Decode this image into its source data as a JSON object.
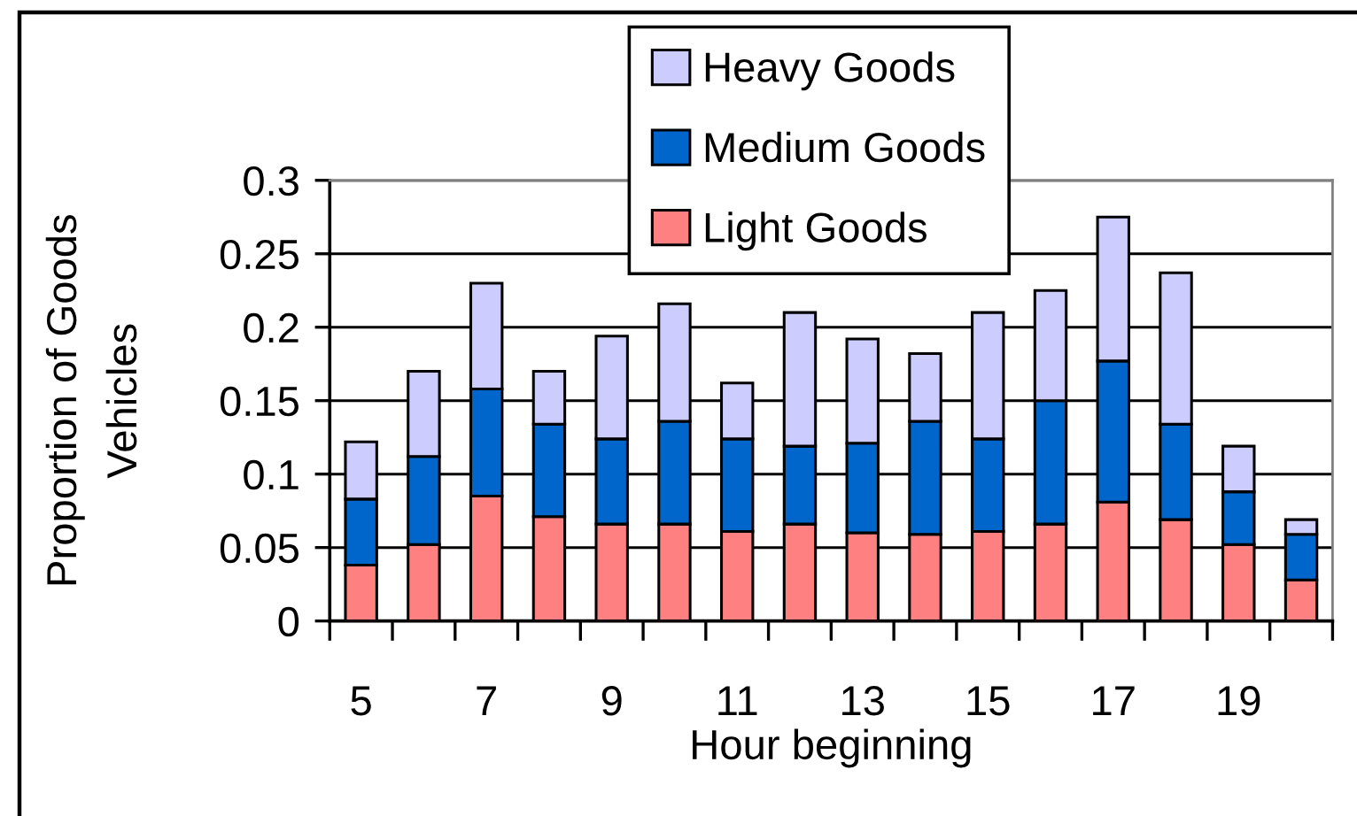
{
  "chart_data": {
    "type": "bar",
    "stacked": true,
    "xlabel": "Hour beginning",
    "ylabel": "Proportion of Goods\nVehicles",
    "categories": [
      "5",
      null,
      "7",
      null,
      "9",
      null,
      "11",
      null,
      "13",
      null,
      "15",
      null,
      "17",
      null,
      "19",
      null
    ],
    "series": [
      {
        "name": "Light Goods",
        "color": "#ff8080",
        "values": [
          0.038,
          0.052,
          0.085,
          0.071,
          0.066,
          0.066,
          0.061,
          0.066,
          0.06,
          0.059,
          0.061,
          0.066,
          0.081,
          0.069,
          0.052,
          0.028
        ]
      },
      {
        "name": "Medium Goods",
        "color": "#0066cc",
        "values": [
          0.045,
          0.06,
          0.073,
          0.063,
          0.058,
          0.07,
          0.063,
          0.053,
          0.061,
          0.077,
          0.063,
          0.084,
          0.096,
          0.065,
          0.036,
          0.031
        ]
      },
      {
        "name": "Heavy Goods",
        "color": "#ccccff",
        "values": [
          0.039,
          0.058,
          0.072,
          0.036,
          0.07,
          0.08,
          0.038,
          0.091,
          0.071,
          0.046,
          0.086,
          0.075,
          0.098,
          0.103,
          0.031,
          0.01
        ]
      }
    ],
    "ylim": [
      0,
      0.3
    ],
    "yticks": [
      0,
      0.05,
      0.1,
      0.15,
      0.2,
      0.25,
      0.3
    ],
    "grid": "y",
    "legend": "top"
  }
}
